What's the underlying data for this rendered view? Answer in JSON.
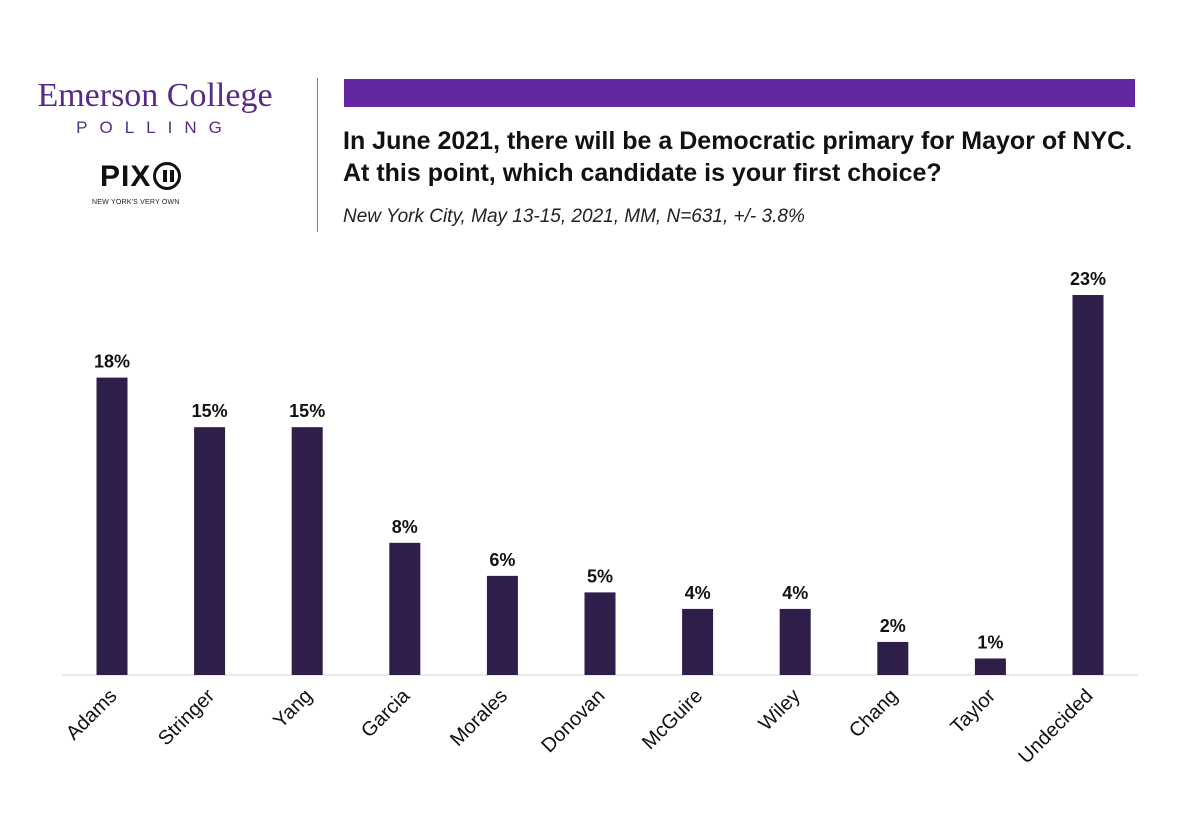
{
  "branding": {
    "emerson_line1": "Emerson College",
    "emerson_line2": "POLLING",
    "pix_wordmark": "PIX",
    "pix_tagline": "NEW YORK'S VERY OWN"
  },
  "colors": {
    "bar": "#2f1d4a",
    "accent": "#6327a0",
    "logo_purple": "#5b2a86"
  },
  "chart_data": {
    "type": "bar",
    "title": "In June 2021, there will be a Democratic primary for Mayor of NYC. At this point, which candidate is your first choice?",
    "subtitle": "New York City, May 13-15, 2021, MM, N=631, +/- 3.8%",
    "categories": [
      "Adams",
      "Stringer",
      "Yang",
      "Garcia",
      "Morales",
      "Donovan",
      "McGuire",
      "Wiley",
      "Chang",
      "Taylor",
      "Undecided"
    ],
    "values": [
      18,
      15,
      15,
      8,
      6,
      5,
      4,
      4,
      2,
      1,
      23
    ],
    "value_labels": [
      "18%",
      "15%",
      "15%",
      "8%",
      "6%",
      "5%",
      "4%",
      "4%",
      "2%",
      "1%",
      "23%"
    ],
    "xlabel": "",
    "ylabel": "",
    "ylim": [
      0,
      23
    ],
    "grid": false,
    "legend": "none"
  }
}
